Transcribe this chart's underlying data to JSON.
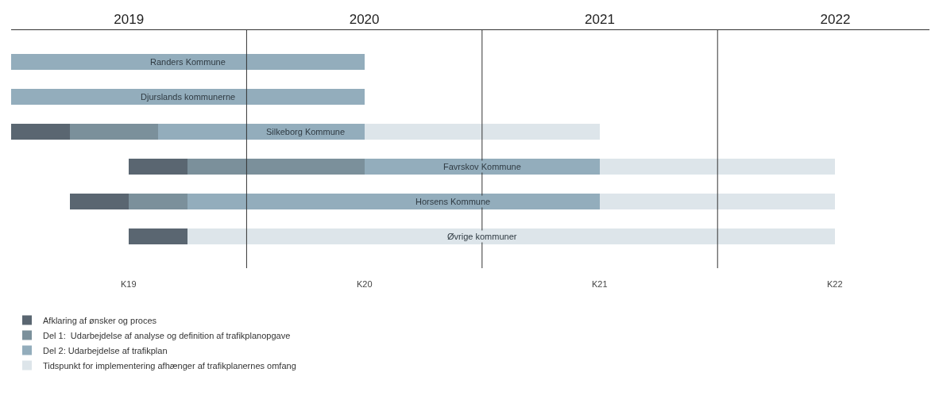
{
  "chart_data": {
    "type": "bar",
    "orientation": "horizontal",
    "stacked": true,
    "categories": [
      "Randers Kommune",
      "Djurslands kommunerne",
      "Silkeborg Kommune",
      "Favrskov Kommune",
      "Horsens Kommune",
      "Øvrige kommuner"
    ],
    "series": [
      {
        "name": "Afklaring af ønsker og proces",
        "color": "#5a6671",
        "base": [
          null,
          null,
          2018.5,
          2019.0,
          2018.75,
          2019.0
        ],
        "values": [
          null,
          null,
          0.25,
          0.25,
          0.25,
          0.25
        ]
      },
      {
        "name": "Del 1:  Udarbejdelse af analyse og definition af trafikplanopgave",
        "color": "#7b909b",
        "base": [
          null,
          null,
          2018.75,
          2019.25,
          2019.0,
          null
        ],
        "values": [
          null,
          null,
          0.375,
          0.75,
          0.25,
          null
        ]
      },
      {
        "name": "Del 2: Udarbejdelse af trafikplan",
        "color": "#93adbc",
        "base": [
          2018.5,
          2018.5,
          2019.125,
          2020.0,
          2019.25,
          null
        ],
        "values": [
          1.5,
          1.5,
          0.875,
          1.0,
          1.75,
          null
        ]
      },
      {
        "name": "Tidspunkt for implementering afhænger af trafikplanernes omfang",
        "color": "#dde5ea",
        "base": [
          null,
          null,
          2020.0,
          2021.0,
          2021.0,
          2019.25
        ],
        "values": [
          null,
          null,
          1.0,
          1.0,
          1.0,
          2.75
        ]
      }
    ],
    "xlim": [
      2018.5,
      2022.4
    ],
    "xticks": [
      2019,
      2020,
      2021,
      2022
    ],
    "annotations": [
      "K19",
      "K20",
      "K21",
      "K22"
    ],
    "ref_lines": [
      {
        "axis": "x",
        "value": 2019.5,
        "color": "#333333"
      },
      {
        "axis": "x",
        "value": 2020.5,
        "color": "#333333"
      },
      {
        "axis": "x",
        "value": 2021.5,
        "color": "#333333"
      }
    ],
    "legend": "bottom left",
    "tick_labels": "x"
  }
}
